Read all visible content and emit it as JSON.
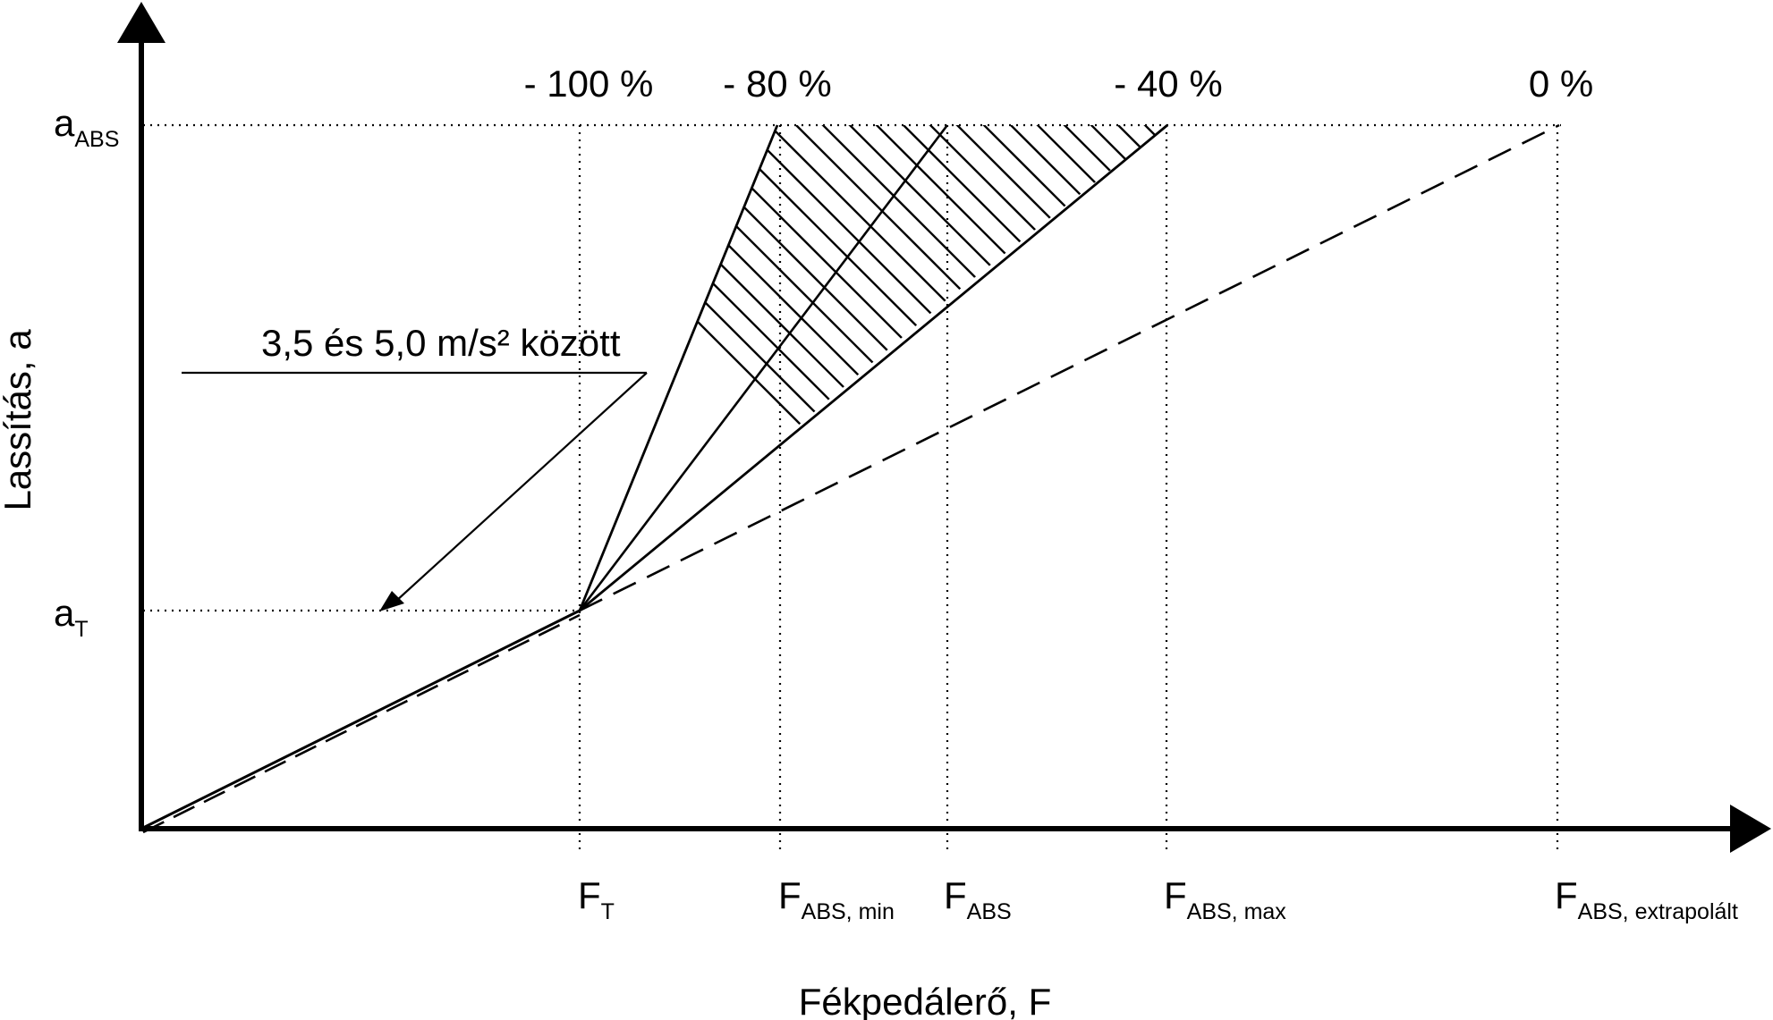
{
  "y_axis": {
    "title": "Lassítás, a",
    "a_abs": {
      "main": "a",
      "sub": "ABS"
    },
    "a_t": {
      "main": "a",
      "sub": "T"
    }
  },
  "x_axis": {
    "title": "Fékpedálerő, F",
    "markers": [
      {
        "main": "F",
        "sub": "T"
      },
      {
        "main": "F",
        "sub": "ABS, min"
      },
      {
        "main": "F",
        "sub": "ABS"
      },
      {
        "main": "F",
        "sub": "ABS, max"
      },
      {
        "main": "F",
        "sub": "ABS, extrapolált"
      }
    ]
  },
  "percent_labels": [
    "- 100 %",
    "- 80 %",
    "- 40 %",
    "0 %"
  ],
  "annotation": "3,5 és 5,0 m/s² között",
  "colors": {
    "ink": "#000000",
    "background": "#ffffff"
  }
}
